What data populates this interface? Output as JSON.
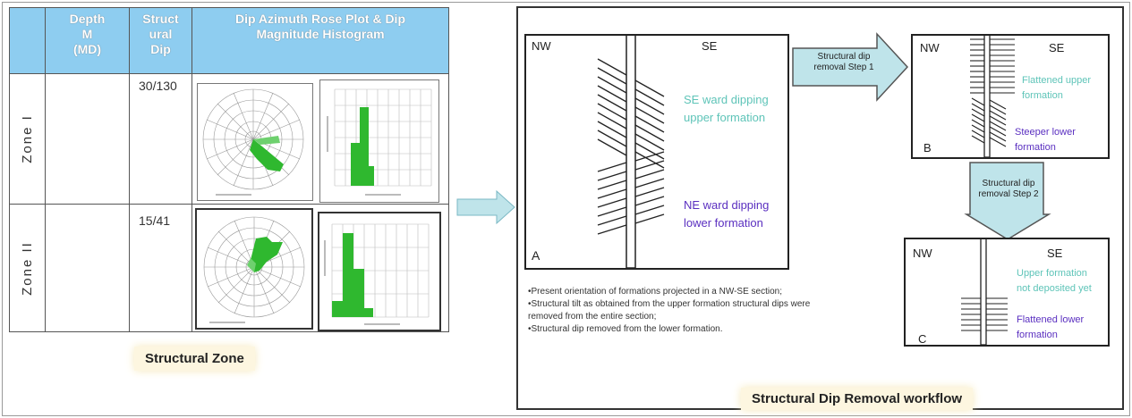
{
  "table": {
    "headers": [
      "",
      "Depth M (MD)",
      "Structural Dip",
      "Dip Azimuth Rose Plot & Dip Magnitude Histogram"
    ],
    "header_lines": {
      "depth": [
        "Depth",
        "M",
        "(MD)"
      ],
      "dip": [
        "Struct",
        "ural",
        "Dip"
      ],
      "plot": [
        "Dip Azimuth Rose Plot & Dip",
        "Magnitude Histogram"
      ]
    },
    "rows": [
      {
        "zone": "Zone I",
        "dip": "30/130"
      },
      {
        "zone": "Zone II",
        "dip": "15/41"
      }
    ],
    "caption": "Structural Zone"
  },
  "workflow": {
    "caption": "Structural Dip Removal workflow",
    "section_a": {
      "letter": "A",
      "nw": "NW",
      "se": "SE",
      "upper_label": [
        "SE ward dipping",
        "upper formation"
      ],
      "lower_label": [
        "NE ward dipping",
        "lower formation"
      ]
    },
    "step1": [
      "Structural dip",
      "removal  Step 1"
    ],
    "section_b": {
      "letter": "B",
      "nw": "NW",
      "se": "SE",
      "upper_label": [
        "Flattened upper",
        "formation"
      ],
      "lower_label": [
        "Steeper lower",
        "formation"
      ]
    },
    "step2": [
      "Structural dip",
      "removal  Step 2"
    ],
    "section_c": {
      "letter": "C",
      "nw": "NW",
      "se": "SE",
      "upper_label": [
        "Upper formation",
        "not deposited yet"
      ],
      "lower_label": [
        "Flattened lower",
        "formation"
      ]
    },
    "notes": [
      "•Present orientation of formations projected in a NW-SE section;",
      "•Structural tilt as obtained from the upper formation structural dips were",
      "removed from the entire section;",
      "•Structural dip removed from the lower formation."
    ]
  },
  "colors": {
    "header": "#8ecdf0",
    "teal_text": "#5ec4b8",
    "purple_text": "#5a2fc0",
    "green": "#2fb82f",
    "arrow": "#bfe4ea"
  }
}
